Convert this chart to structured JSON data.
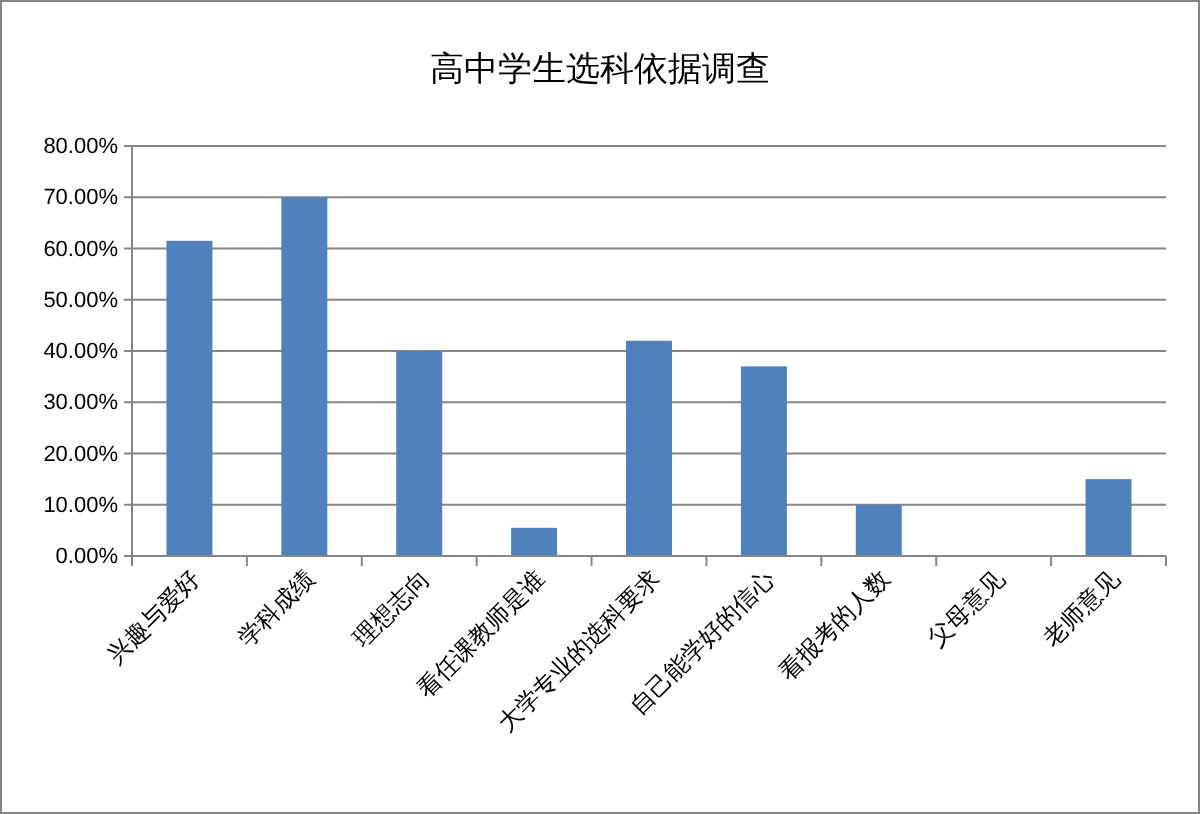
{
  "chart_data": {
    "type": "bar",
    "title": "高中学生选科依据调查",
    "categories": [
      "兴趣与爱好",
      "学科成绩",
      "理想志向",
      "看任课教师是谁",
      "大学专业的选科要求",
      "自己能学好的信心",
      "看报考的人数",
      "父母意见",
      "老师意见"
    ],
    "values": [
      61.5,
      70,
      40,
      5.5,
      42,
      37,
      10,
      0,
      15
    ],
    "color": "#4f81bd",
    "ylim": [
      0,
      80
    ],
    "yticks": [
      {
        "value": 0,
        "label": "0.00%"
      },
      {
        "value": 10,
        "label": "10.00%"
      },
      {
        "value": 20,
        "label": "20.00%"
      },
      {
        "value": 30,
        "label": "30.00%"
      },
      {
        "value": 40,
        "label": "40.00%"
      },
      {
        "value": 50,
        "label": "50.00%"
      },
      {
        "value": 60,
        "label": "60.00%"
      },
      {
        "value": 70,
        "label": "70.00%"
      },
      {
        "value": 80,
        "label": "80.00%"
      }
    ],
    "grid": "y"
  }
}
